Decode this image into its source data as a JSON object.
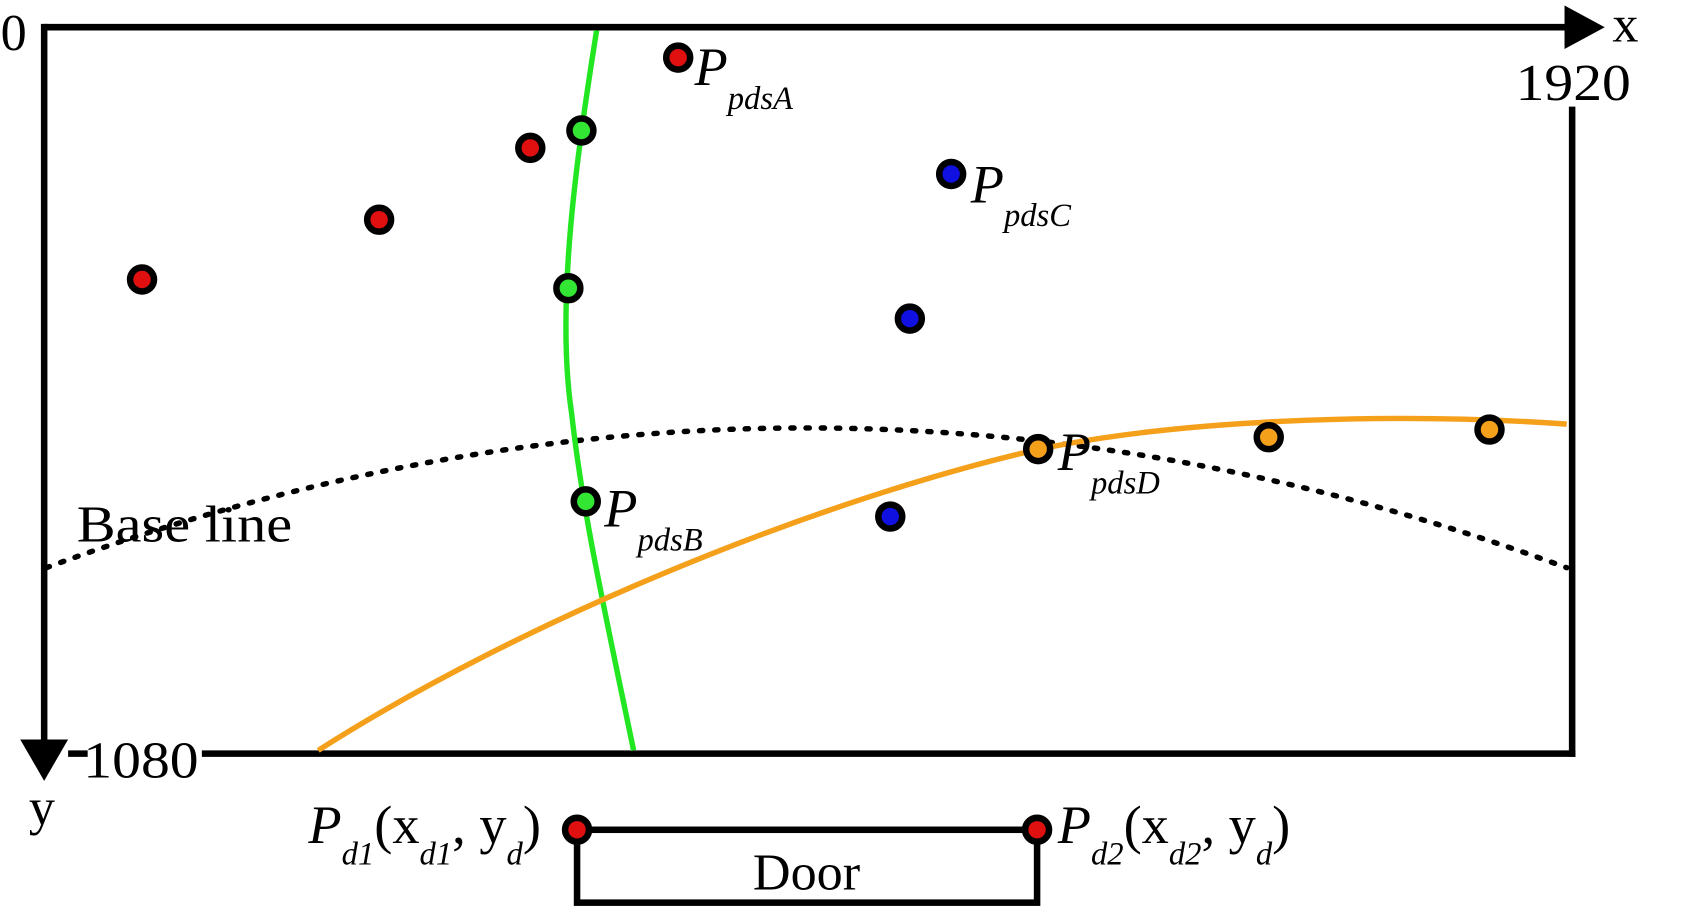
{
  "axes": {
    "origin": "0",
    "x_label": "x",
    "x_max": "1920",
    "y_max": "1080",
    "y_label": "y"
  },
  "baseline_label": "Base line",
  "points": {
    "pdsA": {
      "main": "P",
      "sub": "pdsA"
    },
    "pdsB": {
      "main": "P",
      "sub": "pdsB"
    },
    "pdsC": {
      "main": "P",
      "sub": "pdsC"
    },
    "pdsD": {
      "main": "P",
      "sub": "pdsD"
    }
  },
  "door": {
    "label": "Door",
    "left": [
      {
        "main": "P"
      },
      {
        "sub": "d1"
      },
      {
        "main": "(x"
      },
      {
        "sub": "d1"
      },
      {
        "main": ", y"
      },
      {
        "sub": "d"
      },
      {
        "main": ")"
      }
    ],
    "right": [
      {
        "main": "P"
      },
      {
        "sub": "d2"
      },
      {
        "main": "(x"
      },
      {
        "sub": "d2"
      },
      {
        "main": ", y"
      },
      {
        "sub": "d"
      },
      {
        "main": ")"
      }
    ]
  }
}
